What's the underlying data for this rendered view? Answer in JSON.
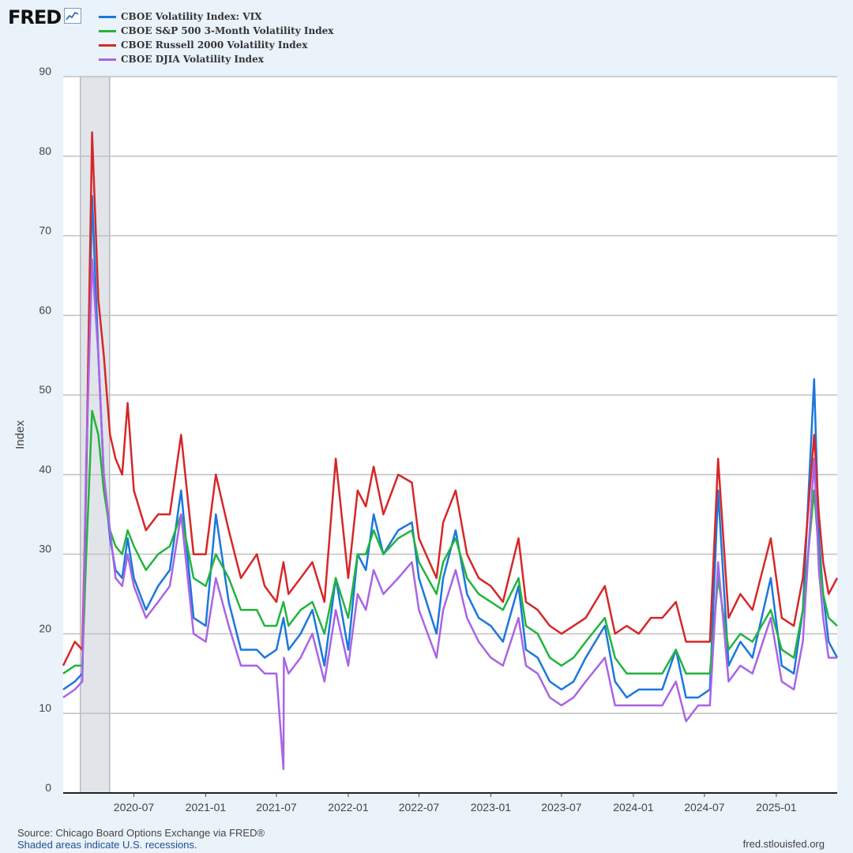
{
  "logo": {
    "text": "FRED",
    "icon": "fred-graph-icon"
  },
  "footer": {
    "source": "Source: Chicago Board Options Exchange via FRED®",
    "recession_note": "Shaded areas indicate U.S. recessions.",
    "site": "fred.stlouisfed.org"
  },
  "chart_data": {
    "type": "line",
    "ylabel": "Index",
    "ylim": [
      0,
      90
    ],
    "yticks": [
      0,
      10,
      20,
      30,
      40,
      50,
      60,
      70,
      80,
      90
    ],
    "xlim": [
      "2020-01-02",
      "2025-06-06"
    ],
    "xticks": [
      "2020-07",
      "2021-01",
      "2021-07",
      "2022-01",
      "2022-07",
      "2023-01",
      "2023-07",
      "2024-01",
      "2024-07",
      "2025-01"
    ],
    "grid": true,
    "legend_position": "top-left",
    "recession": [
      "2020-02-15",
      "2020-04-30"
    ],
    "series": [
      {
        "name": "CBOE Volatility Index: VIX",
        "color": "#1a77dd",
        "x": [
          "2020-01-02",
          "2020-02-01",
          "2020-02-20",
          "2020-03-01",
          "2020-03-16",
          "2020-04-01",
          "2020-04-15",
          "2020-05-01",
          "2020-05-15",
          "2020-06-01",
          "2020-06-15",
          "2020-07-01",
          "2020-08-01",
          "2020-09-01",
          "2020-10-01",
          "2020-10-30",
          "2020-12-01",
          "2021-01-01",
          "2021-01-27",
          "2021-03-01",
          "2021-04-01",
          "2021-05-12",
          "2021-06-01",
          "2021-07-01",
          "2021-07-19",
          "2021-08-01",
          "2021-09-01",
          "2021-10-01",
          "2021-11-01",
          "2021-11-30",
          "2022-01-01",
          "2022-01-25",
          "2022-02-15",
          "2022-03-07",
          "2022-04-01",
          "2022-05-09",
          "2022-06-13",
          "2022-07-01",
          "2022-08-15",
          "2022-09-01",
          "2022-10-03",
          "2022-11-01",
          "2022-12-01",
          "2023-01-01",
          "2023-02-01",
          "2023-03-13",
          "2023-04-01",
          "2023-05-01",
          "2023-06-01",
          "2023-07-01",
          "2023-08-01",
          "2023-09-01",
          "2023-10-20",
          "2023-11-15",
          "2023-12-15",
          "2024-01-15",
          "2024-02-15",
          "2024-03-15",
          "2024-04-19",
          "2024-05-15",
          "2024-06-15",
          "2024-07-15",
          "2024-08-05",
          "2024-09-01",
          "2024-10-01",
          "2024-11-01",
          "2024-12-18",
          "2025-01-15",
          "2025-02-15",
          "2025-03-10",
          "2025-04-08",
          "2025-04-20",
          "2025-05-01",
          "2025-05-15",
          "2025-06-06"
        ],
        "y": [
          13,
          14,
          15,
          40,
          75,
          55,
          40,
          32,
          28,
          27,
          32,
          27,
          23,
          26,
          28,
          38,
          22,
          21,
          35,
          24,
          18,
          18,
          17,
          18,
          22,
          18,
          20,
          23,
          16,
          27,
          18,
          30,
          28,
          35,
          30,
          33,
          34,
          27,
          20,
          27,
          33,
          25,
          22,
          21,
          19,
          26,
          18,
          17,
          14,
          13,
          14,
          17,
          21,
          14,
          12,
          13,
          13,
          13,
          18,
          12,
          12,
          13,
          38,
          16,
          19,
          17,
          27,
          16,
          15,
          23,
          52,
          32,
          25,
          19,
          17
        ]
      },
      {
        "name": "CBOE S&P 500 3-Month Volatility Index",
        "color": "#22b43e",
        "x": [
          "2020-01-02",
          "2020-02-01",
          "2020-02-20",
          "2020-03-01",
          "2020-03-16",
          "2020-04-01",
          "2020-04-15",
          "2020-05-01",
          "2020-05-15",
          "2020-06-01",
          "2020-06-15",
          "2020-07-01",
          "2020-08-01",
          "2020-09-01",
          "2020-10-01",
          "2020-10-30",
          "2020-12-01",
          "2021-01-01",
          "2021-01-27",
          "2021-03-01",
          "2021-04-01",
          "2021-05-12",
          "2021-06-01",
          "2021-07-01",
          "2021-07-19",
          "2021-08-01",
          "2021-09-01",
          "2021-10-01",
          "2021-11-01",
          "2021-11-30",
          "2022-01-01",
          "2022-01-25",
          "2022-02-15",
          "2022-03-07",
          "2022-04-01",
          "2022-05-09",
          "2022-06-13",
          "2022-07-01",
          "2022-08-15",
          "2022-09-01",
          "2022-10-03",
          "2022-11-01",
          "2022-12-01",
          "2023-01-01",
          "2023-02-01",
          "2023-03-13",
          "2023-04-01",
          "2023-05-01",
          "2023-06-01",
          "2023-07-01",
          "2023-08-01",
          "2023-09-01",
          "2023-10-20",
          "2023-11-15",
          "2023-12-15",
          "2024-01-15",
          "2024-02-15",
          "2024-03-15",
          "2024-04-19",
          "2024-05-15",
          "2024-06-15",
          "2024-07-15",
          "2024-08-05",
          "2024-09-01",
          "2024-10-01",
          "2024-11-01",
          "2024-12-18",
          "2025-01-15",
          "2025-02-15",
          "2025-03-10",
          "2025-04-08",
          "2025-04-20",
          "2025-05-01",
          "2025-05-15",
          "2025-06-06"
        ],
        "y": [
          15,
          16,
          16,
          30,
          48,
          45,
          38,
          33,
          31,
          30,
          33,
          31,
          28,
          30,
          31,
          35,
          27,
          26,
          30,
          27,
          23,
          23,
          21,
          21,
          24,
          21,
          23,
          24,
          20,
          27,
          22,
          30,
          30,
          33,
          30,
          32,
          33,
          29,
          25,
          29,
          32,
          27,
          25,
          24,
          23,
          27,
          21,
          20,
          17,
          16,
          17,
          19,
          22,
          17,
          15,
          15,
          15,
          15,
          18,
          15,
          15,
          15,
          27,
          18,
          20,
          19,
          23,
          18,
          17,
          23,
          38,
          30,
          25,
          22,
          21
        ]
      },
      {
        "name": "CBOE Russell 2000 Volatility Index",
        "color": "#d62728",
        "x": [
          "2020-01-02",
          "2020-02-01",
          "2020-02-20",
          "2020-03-01",
          "2020-03-16",
          "2020-04-01",
          "2020-04-15",
          "2020-05-01",
          "2020-05-15",
          "2020-06-01",
          "2020-06-15",
          "2020-07-01",
          "2020-08-01",
          "2020-09-01",
          "2020-10-01",
          "2020-10-30",
          "2020-12-01",
          "2021-01-01",
          "2021-01-27",
          "2021-03-01",
          "2021-04-01",
          "2021-05-12",
          "2021-06-01",
          "2021-07-01",
          "2021-07-19",
          "2021-08-01",
          "2021-09-01",
          "2021-10-01",
          "2021-11-01",
          "2021-11-30",
          "2022-01-01",
          "2022-01-25",
          "2022-02-15",
          "2022-03-07",
          "2022-04-01",
          "2022-05-09",
          "2022-06-13",
          "2022-07-01",
          "2022-08-15",
          "2022-09-01",
          "2022-10-03",
          "2022-11-01",
          "2022-12-01",
          "2023-01-01",
          "2023-02-01",
          "2023-03-13",
          "2023-04-01",
          "2023-05-01",
          "2023-06-01",
          "2023-07-01",
          "2023-08-01",
          "2023-09-01",
          "2023-10-20",
          "2023-11-15",
          "2023-12-15",
          "2024-01-15",
          "2024-02-15",
          "2024-03-15",
          "2024-04-19",
          "2024-05-15",
          "2024-06-15",
          "2024-07-15",
          "2024-08-05",
          "2024-09-01",
          "2024-10-01",
          "2024-11-01",
          "2024-12-18",
          "2025-01-15",
          "2025-02-15",
          "2025-03-10",
          "2025-04-08",
          "2025-04-20",
          "2025-05-01",
          "2025-05-15",
          "2025-06-06"
        ],
        "y": [
          16,
          19,
          18,
          40,
          83,
          62,
          55,
          45,
          42,
          40,
          49,
          38,
          33,
          35,
          35,
          45,
          30,
          30,
          40,
          33,
          27,
          30,
          26,
          24,
          29,
          25,
          27,
          29,
          24,
          42,
          27,
          38,
          36,
          41,
          35,
          40,
          39,
          32,
          27,
          34,
          38,
          30,
          27,
          26,
          24,
          32,
          24,
          23,
          21,
          20,
          21,
          22,
          26,
          20,
          21,
          20,
          22,
          22,
          24,
          19,
          19,
          19,
          42,
          22,
          25,
          23,
          32,
          22,
          21,
          27,
          45,
          35,
          29,
          25,
          27
        ]
      },
      {
        "name": "CBOE DJIA Volatility Index",
        "color": "#a865e5",
        "x": [
          "2020-01-02",
          "2020-02-01",
          "2020-02-20",
          "2020-03-01",
          "2020-03-16",
          "2020-04-01",
          "2020-04-15",
          "2020-05-01",
          "2020-05-15",
          "2020-06-01",
          "2020-06-15",
          "2020-07-01",
          "2020-08-01",
          "2020-09-01",
          "2020-10-01",
          "2020-10-30",
          "2020-12-01",
          "2021-01-01",
          "2021-01-27",
          "2021-03-01",
          "2021-04-01",
          "2021-05-12",
          "2021-06-01",
          "2021-07-01",
          "2021-07-19",
          "2021-07-20",
          "2021-08-01",
          "2021-09-01",
          "2021-10-01",
          "2021-11-01",
          "2021-11-30",
          "2022-01-01",
          "2022-01-25",
          "2022-02-15",
          "2022-03-07",
          "2022-04-01",
          "2022-05-09",
          "2022-06-13",
          "2022-07-01",
          "2022-08-15",
          "2022-09-01",
          "2022-10-03",
          "2022-11-01",
          "2022-12-01",
          "2023-01-01",
          "2023-02-01",
          "2023-03-13",
          "2023-04-01",
          "2023-05-01",
          "2023-06-01",
          "2023-07-01",
          "2023-08-01",
          "2023-09-01",
          "2023-10-20",
          "2023-11-15",
          "2023-12-15",
          "2024-01-15",
          "2024-02-15",
          "2024-03-15",
          "2024-04-19",
          "2024-05-15",
          "2024-06-15",
          "2024-07-15",
          "2024-08-05",
          "2024-09-01",
          "2024-10-01",
          "2024-11-01",
          "2024-12-18",
          "2025-01-15",
          "2025-02-15",
          "2025-03-10",
          "2025-04-08",
          "2025-04-20",
          "2025-05-01",
          "2025-05-15",
          "2025-06-06"
        ],
        "y": [
          12,
          13,
          14,
          42,
          67,
          55,
          40,
          33,
          27,
          26,
          30,
          26,
          22,
          24,
          26,
          35,
          20,
          19,
          27,
          21,
          16,
          16,
          15,
          15,
          3,
          17,
          15,
          17,
          20,
          14,
          23,
          16,
          25,
          23,
          28,
          25,
          27,
          29,
          23,
          17,
          23,
          28,
          22,
          19,
          17,
          16,
          22,
          16,
          15,
          12,
          11,
          12,
          14,
          17,
          11,
          11,
          11,
          11,
          11,
          14,
          9,
          11,
          11,
          29,
          14,
          16,
          15,
          22,
          14,
          13,
          19,
          42,
          28,
          22,
          17,
          17
        ]
      }
    ]
  }
}
